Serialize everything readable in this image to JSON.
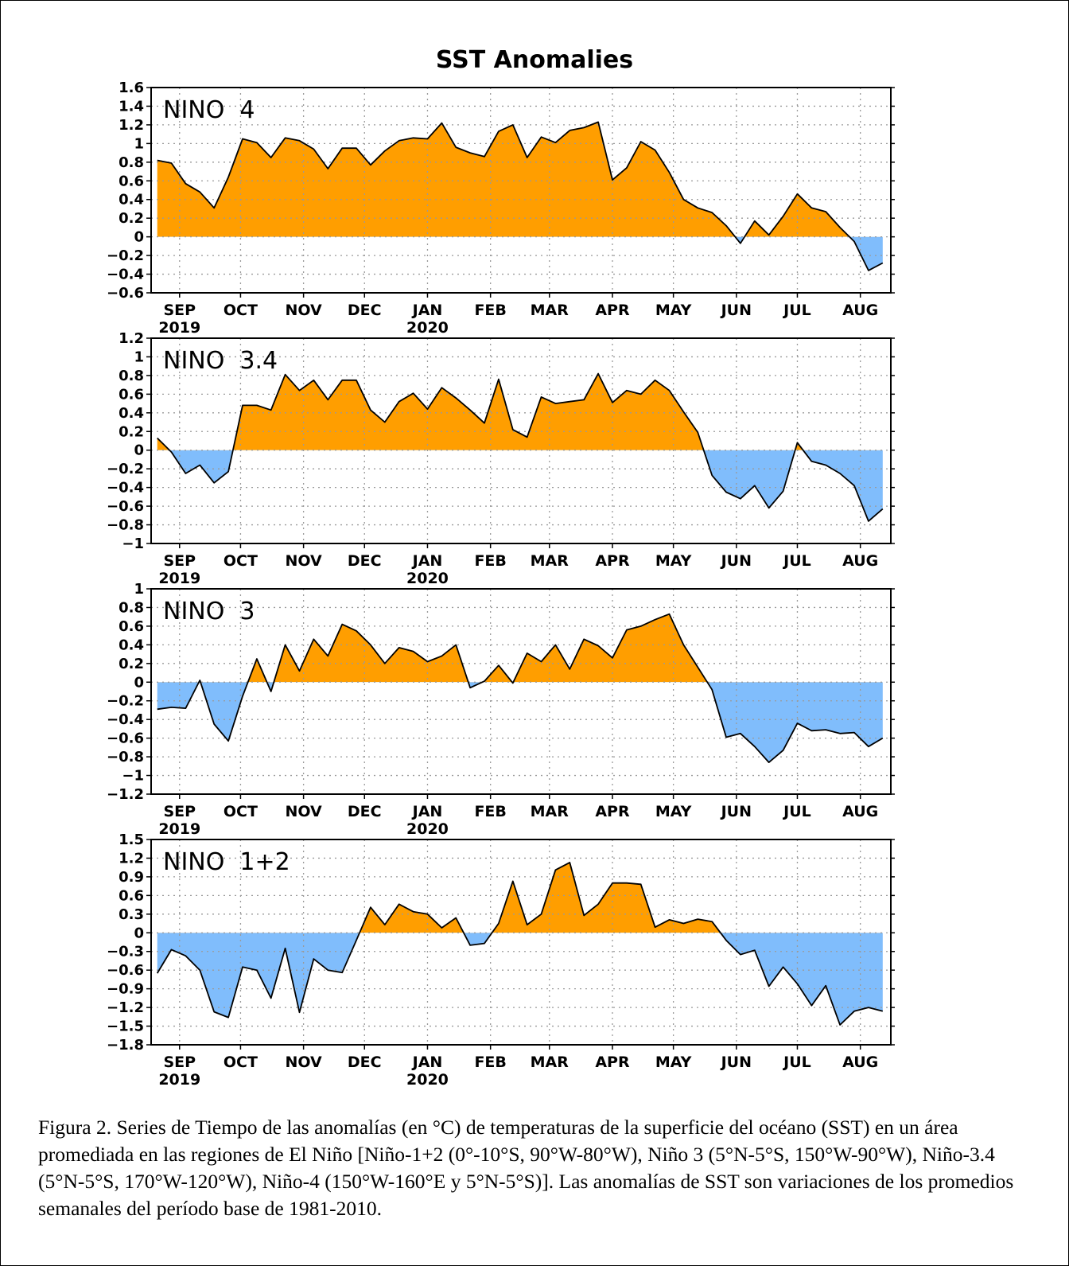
{
  "title": "SST Anomalies",
  "colors": {
    "positive": "#ff9e00",
    "negative": "#80bdfc",
    "line": "#000000",
    "grid": "#9a9a9a"
  },
  "caption": "Figura 2. Series de Tiempo de las anomalías (en °C) de temperaturas de la superficie del océano (SST) en un área promediada en las regiones de El Niño [Niño-1+2 (0°-10°S, 90°W-80°W), Niño 3 (5°N-5°S, 150°W-90°W), Niño-3.4 (5°N-5°S, 170°W-120°W), Niño-4 (150°W-160°E y 5°N-5°S)]. Las anomalías de SST son variaciones de los promedios semanales del período base de 1981-2010.",
  "chart_data": [
    {
      "type": "area",
      "label": "NINO 4",
      "ylim": [
        -0.6,
        1.6
      ],
      "yticks": [
        1.6,
        1.4,
        1.2,
        1,
        0.8,
        0.6,
        0.4,
        0.2,
        0,
        -0.2,
        -0.4,
        -0.6
      ],
      "month_labels": [
        "SEP",
        "OCT",
        "NOV",
        "DEC",
        "JAN",
        "FEB",
        "MAR",
        "APR",
        "MAY",
        "JUN",
        "JUL",
        "AUG"
      ],
      "year_labels": [
        "2019",
        "2020"
      ],
      "x_start": "2019-08-21",
      "x_step_days": 7,
      "values": [
        0.82,
        0.79,
        0.57,
        0.48,
        0.31,
        0.64,
        1.05,
        1.01,
        0.85,
        1.06,
        1.03,
        0.94,
        0.73,
        0.95,
        0.95,
        0.77,
        0.92,
        1.03,
        1.06,
        1.05,
        1.22,
        0.96,
        0.9,
        0.86,
        1.13,
        1.2,
        0.85,
        1.07,
        1.01,
        1.14,
        1.17,
        1.23,
        0.61,
        0.74,
        1.02,
        0.93,
        0.69,
        0.4,
        0.31,
        0.26,
        0.12,
        -0.07,
        0.17,
        0.02,
        0.22,
        0.46,
        0.31,
        0.27,
        0.1,
        -0.05,
        -0.36,
        -0.28
      ]
    },
    {
      "type": "area",
      "label": "NINO 3.4",
      "ylim": [
        -1,
        1.2
      ],
      "yticks": [
        1.2,
        1,
        0.8,
        0.6,
        0.4,
        0.2,
        0,
        -0.2,
        -0.4,
        -0.6,
        -0.8,
        -1
      ],
      "month_labels": [
        "SEP",
        "OCT",
        "NOV",
        "DEC",
        "JAN",
        "FEB",
        "MAR",
        "APR",
        "MAY",
        "JUN",
        "JUL",
        "AUG"
      ],
      "year_labels": [
        "2019",
        "2020"
      ],
      "x_start": "2019-08-21",
      "x_step_days": 7,
      "values": [
        0.13,
        -0.02,
        -0.25,
        -0.16,
        -0.35,
        -0.23,
        0.48,
        0.48,
        0.43,
        0.81,
        0.64,
        0.75,
        0.54,
        0.75,
        0.75,
        0.43,
        0.3,
        0.52,
        0.61,
        0.44,
        0.67,
        0.56,
        0.43,
        0.29,
        0.76,
        0.22,
        0.14,
        0.57,
        0.5,
        0.52,
        0.54,
        0.82,
        0.51,
        0.64,
        0.6,
        0.75,
        0.64,
        0.41,
        0.19,
        -0.27,
        -0.45,
        -0.52,
        -0.38,
        -0.62,
        -0.44,
        0.08,
        -0.12,
        -0.16,
        -0.25,
        -0.38,
        -0.76,
        -0.63
      ]
    },
    {
      "type": "area",
      "label": "NINO 3",
      "ylim": [
        -1.2,
        1
      ],
      "yticks": [
        1,
        0.8,
        0.6,
        0.4,
        0.2,
        0,
        -0.2,
        -0.4,
        -0.6,
        -0.8,
        -1,
        -1.2
      ],
      "month_labels": [
        "SEP",
        "OCT",
        "NOV",
        "DEC",
        "JAN",
        "FEB",
        "MAR",
        "APR",
        "MAY",
        "JUN",
        "JUL",
        "AUG"
      ],
      "year_labels": [
        "2019",
        "2020"
      ],
      "x_start": "2019-08-21",
      "x_step_days": 7,
      "values": [
        -0.29,
        -0.27,
        -0.28,
        0.02,
        -0.45,
        -0.63,
        -0.15,
        0.25,
        -0.1,
        0.4,
        0.12,
        0.46,
        0.28,
        0.62,
        0.55,
        0.4,
        0.2,
        0.37,
        0.33,
        0.22,
        0.28,
        0.4,
        -0.06,
        0.01,
        0.18,
        -0.01,
        0.31,
        0.22,
        0.4,
        0.14,
        0.46,
        0.39,
        0.26,
        0.56,
        0.6,
        0.67,
        0.73,
        0.4,
        0.16,
        -0.08,
        -0.59,
        -0.55,
        -0.69,
        -0.86,
        -0.73,
        -0.44,
        -0.52,
        -0.51,
        -0.55,
        -0.54,
        -0.69,
        -0.6
      ]
    },
    {
      "type": "area",
      "label": "NINO 1+2",
      "ylim": [
        -1.8,
        1.5
      ],
      "yticks": [
        1.5,
        1.2,
        0.9,
        0.6,
        0.3,
        0,
        -0.3,
        -0.6,
        -0.9,
        -1.2,
        -1.5,
        -1.8
      ],
      "month_labels": [
        "SEP",
        "OCT",
        "NOV",
        "DEC",
        "JAN",
        "FEB",
        "MAR",
        "APR",
        "MAY",
        "JUN",
        "JUL",
        "AUG"
      ],
      "year_labels": [
        "2019",
        "2020"
      ],
      "x_start": "2019-08-21",
      "x_step_days": 7,
      "values": [
        -0.65,
        -0.27,
        -0.37,
        -0.6,
        -1.27,
        -1.36,
        -0.55,
        -0.6,
        -1.05,
        -0.25,
        -1.28,
        -0.42,
        -0.6,
        -0.64,
        -0.12,
        0.41,
        0.13,
        0.46,
        0.34,
        0.3,
        0.08,
        0.24,
        -0.2,
        -0.17,
        0.15,
        0.83,
        0.13,
        0.3,
        1.01,
        1.13,
        0.28,
        0.46,
        0.8,
        0.8,
        0.78,
        0.09,
        0.21,
        0.15,
        0.22,
        0.18,
        -0.12,
        -0.35,
        -0.28,
        -0.86,
        -0.55,
        -0.82,
        -1.17,
        -0.85,
        -1.48,
        -1.26,
        -1.2,
        -1.26
      ]
    }
  ]
}
